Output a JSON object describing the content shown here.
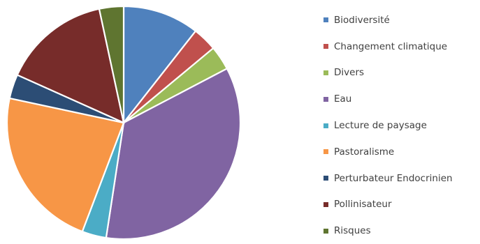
{
  "chart_data": {
    "type": "pie",
    "title": "",
    "start_angle_deg": 0,
    "direction": "clockwise",
    "legend_position": "right",
    "series": [
      {
        "name": "Biodiversité",
        "value": 11.0,
        "color": "#4F81BD"
      },
      {
        "name": "Changement climatique",
        "value": 3.5,
        "color": "#C0504D"
      },
      {
        "name": "Divers",
        "value": 3.5,
        "color": "#9BBB59"
      },
      {
        "name": "Eau",
        "value": 36.5,
        "color": "#8064A2"
      },
      {
        "name": "Lecture de paysage",
        "value": 3.5,
        "color": "#4BACC6"
      },
      {
        "name": "Pastoralisme",
        "value": 23.5,
        "color": "#F79646"
      },
      {
        "name": "Perturbateur Endocrinien",
        "value": 3.5,
        "color": "#2C4D75"
      },
      {
        "name": "Pollinisateur",
        "value": 15.5,
        "color": "#772C2A"
      },
      {
        "name": "Risques",
        "value": 3.5,
        "color": "#5F7530"
      }
    ]
  }
}
